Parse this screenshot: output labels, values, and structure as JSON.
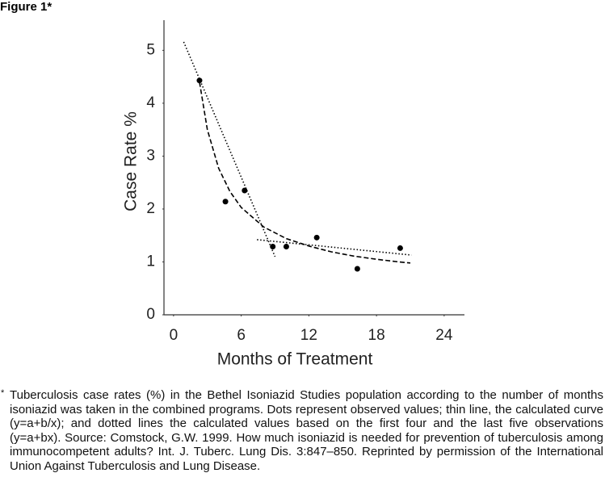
{
  "figure_label": "Figure 1*",
  "chart_data": {
    "type": "scatter",
    "xlabel": "Months of Treatment",
    "ylabel": "Case Rate %",
    "xlim": [
      -0.85,
      25.8
    ],
    "ylim": [
      0,
      5.57
    ],
    "xticks": [
      0,
      6,
      12,
      18,
      24
    ],
    "yticks": [
      0,
      1,
      2,
      3,
      4,
      5
    ],
    "series": [
      {
        "name": "Observed values",
        "kind": "points",
        "color": "#000000",
        "x": [
          2.3,
          4.6,
          6.3,
          8.8,
          10,
          12.7,
          16.3,
          20.1
        ],
        "values": [
          4.43,
          2.14,
          2.35,
          1.29,
          1.29,
          1.46,
          0.87,
          1.26
        ]
      },
      {
        "name": "Calculated curve (y=a+b/x)",
        "kind": "line",
        "dash": "6 3",
        "color": "#000000",
        "x": [
          2.3,
          3,
          4,
          5,
          6,
          8,
          10,
          12,
          14,
          16,
          18,
          20,
          21
        ],
        "values": [
          4.4,
          3.5,
          2.77,
          2.33,
          2.03,
          1.66,
          1.44,
          1.3,
          1.19,
          1.11,
          1.05,
          1.0,
          0.98
        ]
      },
      {
        "name": "First four observations (y=a+bx)",
        "kind": "line",
        "dash": "1.5 2.5",
        "color": "#000000",
        "x": [
          0.9,
          9
        ],
        "values": [
          5.16,
          1.1
        ]
      },
      {
        "name": "Last five observations (y=a+bx)",
        "kind": "line",
        "dash": "1.5 2.5",
        "color": "#000000",
        "x": [
          7.4,
          21.1
        ],
        "values": [
          1.42,
          1.13
        ]
      }
    ]
  },
  "caption": {
    "marker": "*",
    "text": "Tuberculosis case rates (%) in the Bethel Isoniazid Studies population according to the number of months isoniazid was taken in the combined programs. Dots represent observed values; thin line, the calculated curve (y=a+b/x); and dotted lines the calculated values based on the first four and the last five observations (y=a+bx). Source: Comstock, G.W. 1999. How much isoniazid is needed for prevention of tuberculosis among immunocompetent adults? Int. J. Tuberc. Lung Dis. 3:847–850. Reprinted by permission of the International Union Against Tuberculosis and Lung Disease."
  }
}
